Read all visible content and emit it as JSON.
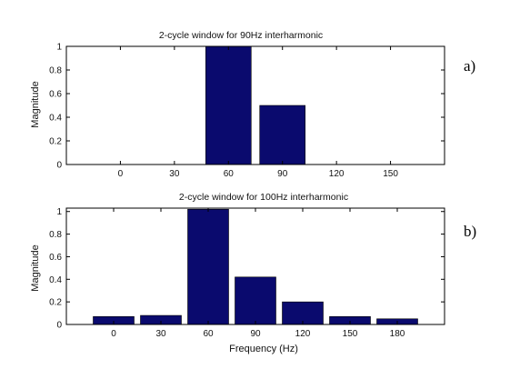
{
  "chart_data": [
    {
      "type": "bar",
      "panel_label": "a)",
      "title": "2-cycle window for 90Hz interharmonic",
      "xlabel": "",
      "ylabel": "Magnitude",
      "x": [
        60,
        90
      ],
      "values": [
        1.0,
        0.5
      ],
      "xticks": [
        "0",
        "30",
        "60",
        "90",
        "120",
        "150"
      ],
      "yticks": [
        "0",
        "0.2",
        "0.4",
        "0.6",
        "0.8",
        "1"
      ],
      "xlim": [
        -30,
        180
      ],
      "ylim": [
        0,
        1
      ],
      "bar_color": "#0a0a6e",
      "grid": false
    },
    {
      "type": "bar",
      "panel_label": "b)",
      "title": "2-cycle window for 100Hz interharmonic",
      "xlabel": "Frequency (Hz)",
      "ylabel": "Magnitude",
      "x": [
        0,
        30,
        60,
        90,
        120,
        150,
        180
      ],
      "values": [
        0.07,
        0.08,
        1.02,
        0.42,
        0.2,
        0.07,
        0.05
      ],
      "xticks": [
        "0",
        "30",
        "60",
        "90",
        "120",
        "150",
        "180"
      ],
      "yticks": [
        "0",
        "0.2",
        "0.4",
        "0.6",
        "0.8",
        "1"
      ],
      "xlim": [
        -30,
        210
      ],
      "ylim": [
        0,
        1.03
      ],
      "bar_color": "#0a0a6e",
      "grid": false
    }
  ]
}
